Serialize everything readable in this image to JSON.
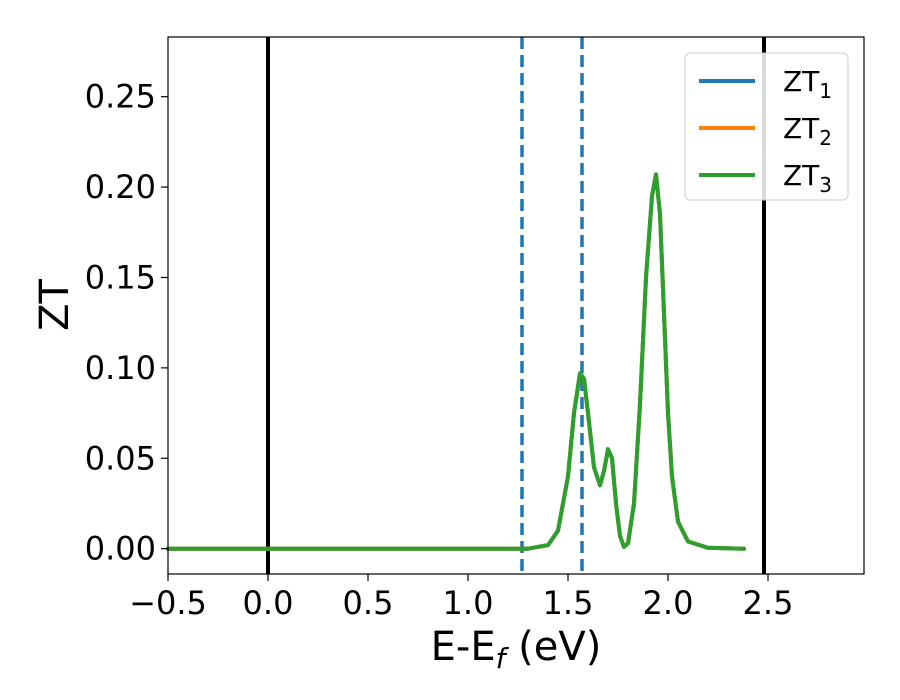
{
  "chart_data": {
    "type": "line",
    "xlabel": {
      "main": "E-E",
      "sub": "f",
      "unit": " (eV)"
    },
    "ylabel": "ZT",
    "xlim": [
      -0.5,
      2.98
    ],
    "ylim": [
      -0.014,
      0.283
    ],
    "xticks": [
      -0.5,
      0.0,
      0.5,
      1.0,
      1.5,
      2.0,
      2.5
    ],
    "xtick_labels": [
      "−0.5",
      "0.0",
      "0.5",
      "1.0",
      "1.5",
      "2.0",
      "2.5"
    ],
    "yticks": [
      0.0,
      0.05,
      0.1,
      0.15,
      0.2,
      0.25
    ],
    "ytick_labels": [
      "0.00",
      "0.05",
      "0.10",
      "0.15",
      "0.20",
      "0.25"
    ],
    "grid": false,
    "legend_position": "top-right",
    "vertical_lines": [
      {
        "x": 0.0,
        "style": "solid",
        "color": "#000000"
      },
      {
        "x": 2.48,
        "style": "solid",
        "color": "#000000"
      },
      {
        "x": 1.27,
        "style": "dashed",
        "color": "#1f77b4"
      },
      {
        "x": 1.57,
        "style": "dashed",
        "color": "#1f77b4"
      }
    ],
    "series": [
      {
        "name": "ZT",
        "name_sub": "1",
        "color": "#1f77b4",
        "x": [
          -0.5,
          1.2,
          1.3,
          1.4,
          1.45,
          1.5,
          1.53,
          1.56,
          1.58,
          1.6,
          1.63,
          1.66,
          1.68,
          1.7,
          1.72,
          1.74,
          1.76,
          1.78,
          1.8,
          1.83,
          1.86,
          1.89,
          1.92,
          1.94,
          1.96,
          1.98,
          2.0,
          2.02,
          2.05,
          2.1,
          2.2,
          2.38
        ],
        "y": [
          0,
          0,
          0,
          0.002,
          0.01,
          0.04,
          0.075,
          0.097,
          0.094,
          0.075,
          0.045,
          0.035,
          0.043,
          0.055,
          0.05,
          0.025,
          0.007,
          0.001,
          0.003,
          0.025,
          0.08,
          0.15,
          0.195,
          0.207,
          0.185,
          0.13,
          0.075,
          0.04,
          0.015,
          0.004,
          0.0005,
          0
        ]
      },
      {
        "name": "ZT",
        "name_sub": "2",
        "color": "#ff7f0e",
        "x": [
          -0.5,
          1.2,
          1.3,
          1.4,
          1.45,
          1.5,
          1.53,
          1.56,
          1.58,
          1.6,
          1.63,
          1.66,
          1.68,
          1.7,
          1.72,
          1.74,
          1.76,
          1.78,
          1.8,
          1.83,
          1.86,
          1.89,
          1.92,
          1.94,
          1.96,
          1.98,
          2.0,
          2.02,
          2.05,
          2.1,
          2.2,
          2.38
        ],
        "y": [
          0,
          0,
          0,
          0.002,
          0.01,
          0.04,
          0.075,
          0.097,
          0.094,
          0.075,
          0.045,
          0.035,
          0.043,
          0.055,
          0.05,
          0.025,
          0.007,
          0.001,
          0.003,
          0.025,
          0.08,
          0.15,
          0.195,
          0.207,
          0.185,
          0.13,
          0.075,
          0.04,
          0.015,
          0.004,
          0.0005,
          0
        ]
      },
      {
        "name": "ZT",
        "name_sub": "3",
        "color": "#2ca02c",
        "x": [
          -0.5,
          1.2,
          1.3,
          1.4,
          1.45,
          1.5,
          1.53,
          1.56,
          1.58,
          1.6,
          1.63,
          1.66,
          1.68,
          1.7,
          1.72,
          1.74,
          1.76,
          1.78,
          1.8,
          1.83,
          1.86,
          1.89,
          1.92,
          1.94,
          1.96,
          1.98,
          2.0,
          2.02,
          2.05,
          2.1,
          2.2,
          2.38
        ],
        "y": [
          0,
          0,
          0,
          0.002,
          0.01,
          0.04,
          0.075,
          0.097,
          0.094,
          0.075,
          0.045,
          0.035,
          0.043,
          0.055,
          0.05,
          0.025,
          0.007,
          0.001,
          0.003,
          0.025,
          0.08,
          0.15,
          0.195,
          0.207,
          0.185,
          0.13,
          0.075,
          0.04,
          0.015,
          0.004,
          0.0005,
          0
        ]
      }
    ]
  }
}
